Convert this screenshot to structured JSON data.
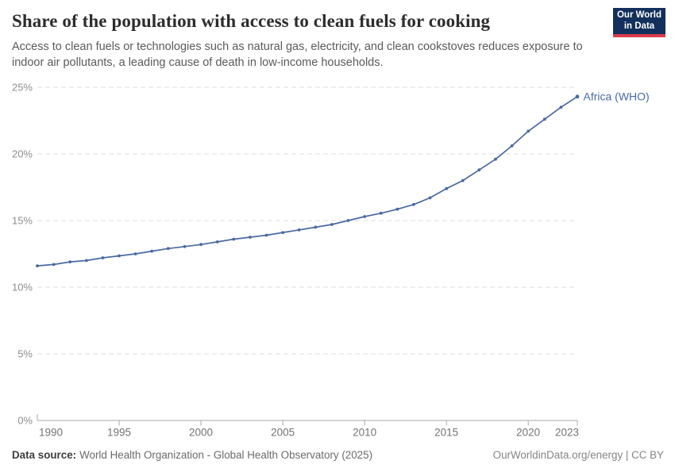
{
  "header": {
    "title": "Share of the population with access to clean fuels for cooking",
    "subtitle": "Access to clean fuels or technologies such as natural gas, electricity, and clean cookstoves reduces exposure to indoor air pollutants, a leading cause of death in low-income households."
  },
  "logo": {
    "line1": "Our World",
    "line2": "in Data",
    "bg_color": "#12305b",
    "accent_color": "#d93a4a"
  },
  "chart_data": {
    "type": "line",
    "title": "Share of the population with access to clean fuels for cooking",
    "x": [
      1990,
      1991,
      1992,
      1993,
      1994,
      1995,
      1996,
      1997,
      1998,
      1999,
      2000,
      2001,
      2002,
      2003,
      2004,
      2005,
      2006,
      2007,
      2008,
      2009,
      2010,
      2011,
      2012,
      2013,
      2014,
      2015,
      2016,
      2017,
      2018,
      2019,
      2020,
      2021,
      2022,
      2023
    ],
    "series": [
      {
        "name": "Africa (WHO)",
        "color": "#4a69a2",
        "values": [
          11.6,
          11.7,
          11.9,
          12.0,
          12.2,
          12.35,
          12.5,
          12.7,
          12.9,
          13.05,
          13.2,
          13.4,
          13.6,
          13.75,
          13.9,
          14.1,
          14.3,
          14.5,
          14.7,
          15.0,
          15.3,
          15.55,
          15.85,
          16.2,
          16.7,
          17.4,
          18.0,
          18.8,
          19.6,
          20.6,
          21.7,
          22.6,
          23.5,
          24.3
        ]
      }
    ],
    "xlabel": "",
    "ylabel": "",
    "ylim": [
      0,
      25
    ],
    "xlim": [
      1990,
      2023
    ],
    "yticks": [
      {
        "value": 0,
        "label": "0%"
      },
      {
        "value": 5,
        "label": "5%"
      },
      {
        "value": 10,
        "label": "10%"
      },
      {
        "value": 15,
        "label": "15%"
      },
      {
        "value": 20,
        "label": "20%"
      },
      {
        "value": 25,
        "label": "25%"
      }
    ],
    "xticks": [
      {
        "value": 1990,
        "label": "1990"
      },
      {
        "value": 1995,
        "label": "1995"
      },
      {
        "value": 2000,
        "label": "2000"
      },
      {
        "value": 2005,
        "label": "2005"
      },
      {
        "value": 2010,
        "label": "2010"
      },
      {
        "value": 2015,
        "label": "2015"
      },
      {
        "value": 2020,
        "label": "2020"
      },
      {
        "value": 2023,
        "label": "2023"
      }
    ],
    "grid": "horizontal-dashed",
    "legend_position": "line-end-label",
    "grid_color": "#dcdcdc",
    "axis_color": "#a9a9a9"
  },
  "footer": {
    "source_label": "Data source:",
    "source_text": "World Health Organization - Global Health Observatory (2025)",
    "credit": "OurWorldinData.org/energy | CC BY"
  }
}
